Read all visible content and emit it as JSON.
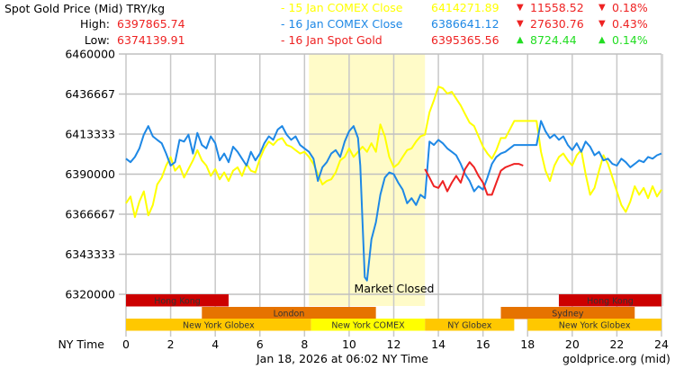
{
  "header": {
    "title": "Spot Gold Price (Mid) TRY/kg",
    "high_label": "High:",
    "high_value": "6397865.74",
    "low_label": "Low:",
    "low_value": "6374139.91"
  },
  "legend": [
    {
      "label": "- 15 Jan COMEX Close",
      "value": "6414271.89",
      "change_arrow": "▼",
      "change": "11558.52",
      "pct_arrow": "▼",
      "pct": "0.18%",
      "color": "#ffff00",
      "change_color": "#ee2222"
    },
    {
      "label": "- 16 Jan COMEX Close",
      "value": "6386641.12",
      "change_arrow": "▼",
      "change": "27630.76",
      "pct_arrow": "▼",
      "pct": "0.43%",
      "color": "#1e88e5",
      "change_color": "#ee2222"
    },
    {
      "label": "- 16 Jan Spot Gold",
      "value": "6395365.56",
      "change_arrow": "▲",
      "change": "8724.44",
      "pct_arrow": "▲",
      "pct": "0.14%",
      "color": "#ee2222",
      "change_color": "#22dd22"
    }
  ],
  "footer": {
    "x_axis_name": "NY Time",
    "timestamp": "Jan 18, 2026 at 06:02 NY Time",
    "source": "goldprice.org (mid)"
  },
  "annotations": {
    "market_closed": "Market Closed"
  },
  "sessions": [
    {
      "name": "Hong Kong",
      "row": 0,
      "start": 0,
      "end": 4.6,
      "color": "#cc0000"
    },
    {
      "name": "Hong Kong",
      "row": 0,
      "start": 19.4,
      "end": 24,
      "color": "#cc0000"
    },
    {
      "name": "London",
      "row": 1,
      "start": 3.4,
      "end": 11.2,
      "color": "#e67300"
    },
    {
      "name": "Sydney",
      "row": 1,
      "start": 16.8,
      "end": 22.8,
      "color": "#e67300"
    },
    {
      "name": "New York Globex",
      "row": 2,
      "start": 0,
      "end": 8.3,
      "color": "#ffc800"
    },
    {
      "name": "New York COMEX",
      "row": 2,
      "start": 8.3,
      "end": 13.4,
      "color": "#ffff00"
    },
    {
      "name": "NY Globex",
      "row": 2,
      "start": 13.4,
      "end": 17.4,
      "color": "#ffc800"
    },
    {
      "name": "New York Globex",
      "row": 2,
      "start": 18.0,
      "end": 24,
      "color": "#ffc800"
    }
  ],
  "chart_data": {
    "type": "line",
    "title": "Spot Gold Price (Mid) TRY/kg",
    "xlabel": "NY Time",
    "ylabel": "",
    "xlim": [
      0,
      24
    ],
    "ylim": [
      6320000,
      6460000
    ],
    "x_ticks": [
      0,
      2,
      4,
      6,
      8,
      10,
      12,
      14,
      16,
      18,
      20,
      22,
      24
    ],
    "y_ticks": [
      6460000,
      6436667,
      6413333,
      6390000,
      6366667,
      6343333,
      6320000
    ],
    "grid": true,
    "shaded_region": {
      "start": 8.2,
      "end": 13.4,
      "label": "Market Closed",
      "color": "#fffbc8"
    },
    "series": [
      {
        "name": "15 Jan COMEX Close",
        "color": "#ffff00",
        "points": [
          [
            0,
            6373000
          ],
          [
            0.2,
            6377000
          ],
          [
            0.4,
            6365000
          ],
          [
            0.6,
            6374000
          ],
          [
            0.8,
            6380000
          ],
          [
            1.0,
            6366000
          ],
          [
            1.2,
            6372000
          ],
          [
            1.4,
            6384000
          ],
          [
            1.6,
            6388000
          ],
          [
            1.8,
            6395000
          ],
          [
            2.0,
            6400000
          ],
          [
            2.2,
            6392000
          ],
          [
            2.4,
            6395000
          ],
          [
            2.6,
            6388000
          ],
          [
            2.8,
            6393000
          ],
          [
            3.0,
            6398000
          ],
          [
            3.2,
            6404000
          ],
          [
            3.4,
            6398000
          ],
          [
            3.6,
            6395000
          ],
          [
            3.8,
            6389000
          ],
          [
            4.0,
            6393000
          ],
          [
            4.2,
            6387000
          ],
          [
            4.4,
            6391000
          ],
          [
            4.6,
            6386000
          ],
          [
            4.8,
            6392000
          ],
          [
            5.0,
            6394000
          ],
          [
            5.2,
            6389000
          ],
          [
            5.4,
            6396000
          ],
          [
            5.6,
            6392000
          ],
          [
            5.8,
            6391000
          ],
          [
            6.0,
            6399000
          ],
          [
            6.2,
            6405000
          ],
          [
            6.4,
            6409000
          ],
          [
            6.6,
            6407000
          ],
          [
            6.8,
            6410000
          ],
          [
            7.0,
            6411000
          ],
          [
            7.2,
            6407000
          ],
          [
            7.4,
            6406000
          ],
          [
            7.6,
            6404000
          ],
          [
            7.8,
            6402000
          ],
          [
            8.0,
            6403000
          ],
          [
            8.2,
            6400000
          ],
          [
            8.4,
            6396000
          ],
          [
            8.6,
            6390000
          ],
          [
            8.8,
            6384000
          ],
          [
            9.0,
            6386000
          ],
          [
            9.2,
            6387000
          ],
          [
            9.4,
            6391000
          ],
          [
            9.6,
            6398000
          ],
          [
            9.8,
            6400000
          ],
          [
            10.0,
            6405000
          ],
          [
            10.2,
            6400000
          ],
          [
            10.4,
            6403000
          ],
          [
            10.6,
            6406000
          ],
          [
            10.8,
            6403000
          ],
          [
            11.0,
            6408000
          ],
          [
            11.2,
            6403000
          ],
          [
            11.4,
            6419000
          ],
          [
            11.6,
            6412000
          ],
          [
            11.8,
            6400000
          ],
          [
            12.0,
            6394000
          ],
          [
            12.2,
            6396000
          ],
          [
            12.4,
            6400000
          ],
          [
            12.6,
            6404000
          ],
          [
            12.8,
            6405000
          ],
          [
            13.0,
            6409000
          ],
          [
            13.2,
            6412000
          ],
          [
            13.4,
            6413000
          ],
          [
            13.6,
            6426000
          ],
          [
            13.8,
            6433000
          ],
          [
            14.0,
            6441000
          ],
          [
            14.2,
            6440000
          ],
          [
            14.4,
            6437000
          ],
          [
            14.6,
            6438000
          ],
          [
            14.8,
            6434000
          ],
          [
            15.0,
            6430000
          ],
          [
            15.2,
            6425000
          ],
          [
            15.4,
            6420000
          ],
          [
            15.6,
            6418000
          ],
          [
            15.8,
            6412000
          ],
          [
            16.0,
            6406000
          ],
          [
            16.2,
            6402000
          ],
          [
            16.4,
            6399000
          ],
          [
            16.6,
            6404000
          ],
          [
            16.8,
            6411000
          ],
          [
            17.0,
            6411000
          ],
          [
            17.4,
            6421000
          ],
          [
            18.4,
            6421000
          ],
          [
            18.6,
            6403000
          ],
          [
            18.8,
            6392000
          ],
          [
            19.0,
            6386000
          ],
          [
            19.2,
            6395000
          ],
          [
            19.4,
            6400000
          ],
          [
            19.6,
            6402000
          ],
          [
            19.8,
            6398000
          ],
          [
            20.0,
            6395000
          ],
          [
            20.2,
            6401000
          ],
          [
            20.4,
            6404000
          ],
          [
            20.6,
            6390000
          ],
          [
            20.8,
            6378000
          ],
          [
            21.0,
            6382000
          ],
          [
            21.2,
            6392000
          ],
          [
            21.4,
            6401000
          ],
          [
            21.6,
            6396000
          ],
          [
            21.8,
            6388000
          ],
          [
            22.0,
            6380000
          ],
          [
            22.2,
            6372000
          ],
          [
            22.4,
            6368000
          ],
          [
            22.6,
            6374000
          ],
          [
            22.8,
            6383000
          ],
          [
            23.0,
            6378000
          ],
          [
            23.2,
            6382000
          ],
          [
            23.4,
            6376000
          ],
          [
            23.6,
            6383000
          ],
          [
            23.8,
            6377000
          ],
          [
            24.0,
            6381000
          ]
        ]
      },
      {
        "name": "16 Jan COMEX Close",
        "color": "#1e88e5",
        "points": [
          [
            0,
            6399000
          ],
          [
            0.2,
            6397000
          ],
          [
            0.4,
            6400000
          ],
          [
            0.6,
            6405000
          ],
          [
            0.8,
            6413000
          ],
          [
            1.0,
            6418000
          ],
          [
            1.2,
            6412000
          ],
          [
            1.4,
            6410000
          ],
          [
            1.6,
            6408000
          ],
          [
            1.8,
            6402000
          ],
          [
            2.0,
            6395000
          ],
          [
            2.2,
            6397000
          ],
          [
            2.4,
            6410000
          ],
          [
            2.6,
            6409000
          ],
          [
            2.8,
            6413000
          ],
          [
            3.0,
            6402000
          ],
          [
            3.2,
            6414000
          ],
          [
            3.4,
            6407000
          ],
          [
            3.6,
            6405000
          ],
          [
            3.8,
            6412000
          ],
          [
            4.0,
            6408000
          ],
          [
            4.2,
            6398000
          ],
          [
            4.4,
            6402000
          ],
          [
            4.6,
            6397000
          ],
          [
            4.8,
            6406000
          ],
          [
            5.0,
            6403000
          ],
          [
            5.2,
            6399000
          ],
          [
            5.4,
            6395000
          ],
          [
            5.6,
            6403000
          ],
          [
            5.8,
            6398000
          ],
          [
            6.0,
            6402000
          ],
          [
            6.2,
            6408000
          ],
          [
            6.4,
            6412000
          ],
          [
            6.6,
            6410000
          ],
          [
            6.8,
            6416000
          ],
          [
            7.0,
            6418000
          ],
          [
            7.2,
            6413000
          ],
          [
            7.4,
            6410000
          ],
          [
            7.6,
            6412000
          ],
          [
            7.8,
            6407000
          ],
          [
            8.0,
            6405000
          ],
          [
            8.2,
            6403000
          ],
          [
            8.4,
            6399000
          ],
          [
            8.6,
            6386000
          ],
          [
            8.8,
            6394000
          ],
          [
            9.0,
            6397000
          ],
          [
            9.2,
            6402000
          ],
          [
            9.4,
            6404000
          ],
          [
            9.6,
            6400000
          ],
          [
            9.8,
            6409000
          ],
          [
            10.0,
            6415000
          ],
          [
            10.2,
            6418000
          ],
          [
            10.4,
            6411000
          ],
          [
            10.5,
            6395000
          ],
          [
            10.6,
            6362000
          ],
          [
            10.7,
            6330000
          ],
          [
            10.8,
            6328000
          ],
          [
            11.0,
            6352000
          ],
          [
            11.2,
            6362000
          ],
          [
            11.4,
            6378000
          ],
          [
            11.6,
            6388000
          ],
          [
            11.8,
            6391000
          ],
          [
            12.0,
            6390000
          ],
          [
            12.2,
            6385000
          ],
          [
            12.4,
            6381000
          ],
          [
            12.6,
            6373000
          ],
          [
            12.8,
            6376000
          ],
          [
            13.0,
            6372000
          ],
          [
            13.2,
            6378000
          ],
          [
            13.4,
            6376000
          ],
          [
            13.6,
            6409000
          ],
          [
            13.8,
            6407000
          ],
          [
            14.0,
            6410000
          ],
          [
            14.2,
            6408000
          ],
          [
            14.4,
            6405000
          ],
          [
            14.6,
            6403000
          ],
          [
            14.8,
            6401000
          ],
          [
            15.0,
            6396000
          ],
          [
            15.2,
            6390000
          ],
          [
            15.4,
            6386000
          ],
          [
            15.6,
            6380000
          ],
          [
            15.8,
            6383000
          ],
          [
            16.0,
            6381000
          ],
          [
            16.2,
            6388000
          ],
          [
            16.4,
            6396000
          ],
          [
            16.6,
            6400000
          ],
          [
            16.8,
            6402000
          ],
          [
            17.0,
            6403000
          ],
          [
            17.4,
            6407000
          ],
          [
            18.4,
            6407000
          ],
          [
            18.6,
            6421000
          ],
          [
            18.8,
            6415000
          ],
          [
            19.0,
            6411000
          ],
          [
            19.2,
            6413000
          ],
          [
            19.4,
            6410000
          ],
          [
            19.6,
            6412000
          ],
          [
            19.8,
            6407000
          ],
          [
            20.0,
            6404000
          ],
          [
            20.2,
            6408000
          ],
          [
            20.4,
            6403000
          ],
          [
            20.6,
            6409000
          ],
          [
            20.8,
            6406000
          ],
          [
            21.0,
            6401000
          ],
          [
            21.2,
            6403000
          ],
          [
            21.4,
            6398000
          ],
          [
            21.6,
            6399000
          ],
          [
            21.8,
            6396000
          ],
          [
            22.0,
            6395000
          ],
          [
            22.2,
            6399000
          ],
          [
            22.4,
            6397000
          ],
          [
            22.6,
            6394000
          ],
          [
            22.8,
            6396000
          ],
          [
            23.0,
            6398000
          ],
          [
            23.2,
            6397000
          ],
          [
            23.4,
            6400000
          ],
          [
            23.6,
            6399000
          ],
          [
            23.8,
            6401000
          ],
          [
            24.0,
            6402000
          ]
        ]
      },
      {
        "name": "16 Jan Spot Gold",
        "color": "#ee2222",
        "points": [
          [
            13.4,
            6393000
          ],
          [
            13.6,
            6388000
          ],
          [
            13.8,
            6383000
          ],
          [
            14.0,
            6382000
          ],
          [
            14.2,
            6386000
          ],
          [
            14.4,
            6380000
          ],
          [
            14.6,
            6385000
          ],
          [
            14.8,
            6389000
          ],
          [
            15.0,
            6385000
          ],
          [
            15.2,
            6393000
          ],
          [
            15.4,
            6397000
          ],
          [
            15.6,
            6394000
          ],
          [
            15.8,
            6389000
          ],
          [
            16.0,
            6385000
          ],
          [
            16.2,
            6378000
          ],
          [
            16.4,
            6378000
          ],
          [
            16.6,
            6385000
          ],
          [
            16.8,
            6392000
          ],
          [
            17.0,
            6394000
          ],
          [
            17.2,
            6395000
          ],
          [
            17.4,
            6396000
          ],
          [
            17.6,
            6396000
          ],
          [
            17.8,
            6395000
          ]
        ]
      }
    ]
  }
}
